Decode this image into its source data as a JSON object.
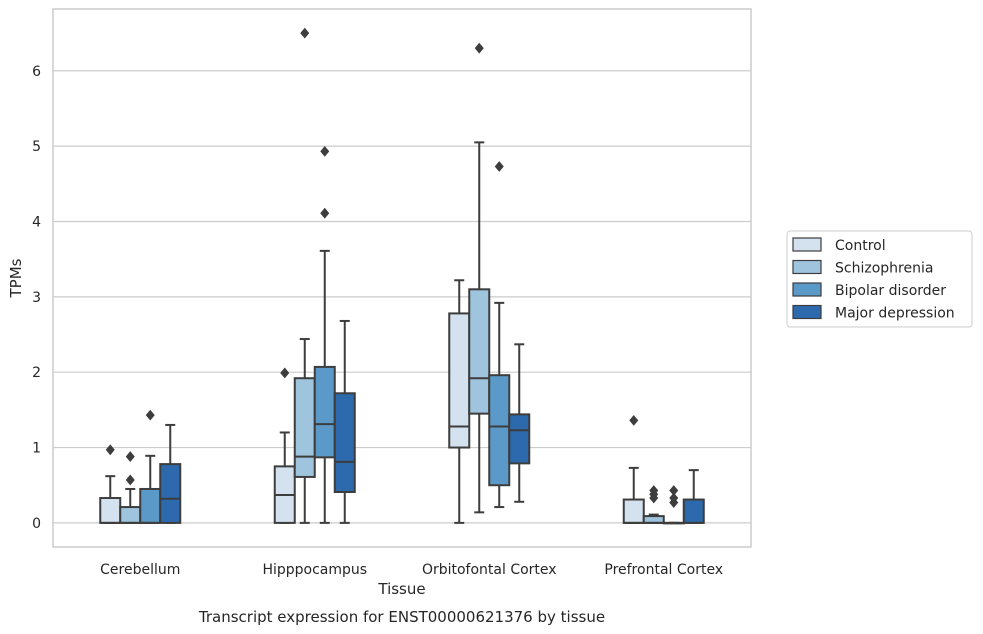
{
  "chart_data": {
    "type": "box",
    "title": "",
    "caption": "Transcript expression for ENST00000621376 by tissue",
    "xlabel": "Tissue",
    "ylabel": "TPMs",
    "ylim": [
      -0.32,
      6.82
    ],
    "yticks": [
      0,
      1,
      2,
      3,
      4,
      5,
      6
    ],
    "grid": "horizontal",
    "legend": "right",
    "categories": [
      "Cerebellum",
      "Hipppocampus",
      "Orbitofontal Cortex",
      "Prefrontal Cortex"
    ],
    "series": [
      {
        "name": "Control",
        "color": "#d4e2f0",
        "boxes": [
          {
            "q1": 0,
            "median": 0,
            "q3": 0.33,
            "whisker_low": 0,
            "whisker_high": 0.62,
            "outliers": [
              0.97
            ]
          },
          {
            "q1": 0,
            "median": 0.37,
            "q3": 0.75,
            "whisker_low": 0,
            "whisker_high": 1.2,
            "outliers": [
              1.99
            ]
          },
          {
            "q1": 1.0,
            "median": 1.28,
            "q3": 2.78,
            "whisker_low": 0,
            "whisker_high": 3.22,
            "outliers": []
          },
          {
            "q1": 0,
            "median": 0,
            "q3": 0.31,
            "whisker_low": 0,
            "whisker_high": 0.73,
            "outliers": [
              1.36
            ]
          }
        ]
      },
      {
        "name": "Schizophrenia",
        "color": "#9ec4de",
        "boxes": [
          {
            "q1": 0,
            "median": 0,
            "q3": 0.21,
            "whisker_low": 0,
            "whisker_high": 0.45,
            "outliers": [
              0.57,
              0.88
            ]
          },
          {
            "q1": 0.61,
            "median": 0.88,
            "q3": 1.92,
            "whisker_low": 0,
            "whisker_high": 2.44,
            "outliers": [
              6.5
            ]
          },
          {
            "q1": 1.45,
            "median": 1.92,
            "q3": 3.1,
            "whisker_low": 0.14,
            "whisker_high": 5.05,
            "outliers": [
              6.3
            ]
          },
          {
            "q1": 0,
            "median": 0,
            "q3": 0.09,
            "whisker_low": 0,
            "whisker_high": 0.11,
            "outliers": [
              0.33,
              0.38,
              0.43
            ]
          }
        ]
      },
      {
        "name": "Bipolar disorder",
        "color": "#5b9ac8",
        "boxes": [
          {
            "q1": 0,
            "median": 0,
            "q3": 0.45,
            "whisker_low": 0,
            "whisker_high": 0.89,
            "outliers": [
              1.43
            ]
          },
          {
            "q1": 0.87,
            "median": 1.31,
            "q3": 2.07,
            "whisker_low": 0,
            "whisker_high": 3.61,
            "outliers": [
              4.11,
              4.93
            ]
          },
          {
            "q1": 0.5,
            "median": 1.28,
            "q3": 1.96,
            "whisker_low": 0.21,
            "whisker_high": 2.92,
            "outliers": [
              4.73
            ]
          },
          {
            "q1": 0,
            "median": 0,
            "q3": 0,
            "whisker_low": 0,
            "whisker_high": 0,
            "outliers": [
              0.27,
              0.33,
              0.43
            ]
          }
        ]
      },
      {
        "name": "Major depression",
        "color": "#2c6aad",
        "boxes": [
          {
            "q1": 0,
            "median": 0.32,
            "q3": 0.78,
            "whisker_low": 0,
            "whisker_high": 1.3,
            "outliers": []
          },
          {
            "q1": 0.41,
            "median": 0.81,
            "q3": 1.72,
            "whisker_low": 0,
            "whisker_high": 2.68,
            "outliers": []
          },
          {
            "q1": 0.79,
            "median": 1.23,
            "q3": 1.44,
            "whisker_low": 0.28,
            "whisker_high": 2.37,
            "outliers": []
          },
          {
            "q1": 0,
            "median": 0,
            "q3": 0.31,
            "whisker_low": 0,
            "whisker_high": 0.7,
            "outliers": []
          }
        ]
      }
    ]
  }
}
